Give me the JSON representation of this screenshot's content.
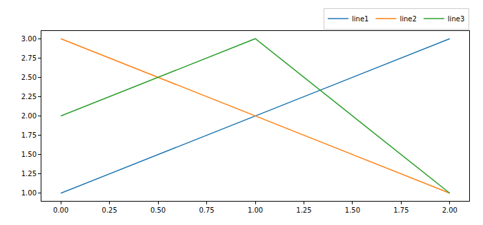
{
  "chart_data": {
    "type": "line",
    "x": [
      0,
      1,
      2
    ],
    "series": [
      {
        "name": "line1",
        "color": "#1f77b4",
        "values": [
          1,
          2,
          3
        ]
      },
      {
        "name": "line2",
        "color": "#ff7f0e",
        "values": [
          3,
          2,
          1
        ]
      },
      {
        "name": "line3",
        "color": "#2ca02c",
        "values": [
          2,
          3,
          1
        ]
      }
    ],
    "xlim": [
      -0.1,
      2.1
    ],
    "ylim": [
      0.9,
      3.1
    ],
    "xticks": [
      {
        "value": 0,
        "label": "0.00"
      },
      {
        "value": 0.25,
        "label": "0.25"
      },
      {
        "value": 0.5,
        "label": "0.50"
      },
      {
        "value": 0.75,
        "label": "0.75"
      },
      {
        "value": 1,
        "label": "1.00"
      },
      {
        "value": 1.25,
        "label": "1.25"
      },
      {
        "value": 1.5,
        "label": "1.50"
      },
      {
        "value": 1.75,
        "label": "1.75"
      },
      {
        "value": 2,
        "label": "2.00"
      }
    ],
    "yticks": [
      {
        "value": 1,
        "label": "1.00"
      },
      {
        "value": 1.25,
        "label": "1.25"
      },
      {
        "value": 1.5,
        "label": "1.50"
      },
      {
        "value": 1.75,
        "label": "1.75"
      },
      {
        "value": 2,
        "label": "2.00"
      },
      {
        "value": 2.25,
        "label": "2.25"
      },
      {
        "value": 2.5,
        "label": "2.50"
      },
      {
        "value": 2.75,
        "label": "2.75"
      },
      {
        "value": 3,
        "label": "3.00"
      }
    ],
    "grid": false,
    "legend": "upper right"
  }
}
